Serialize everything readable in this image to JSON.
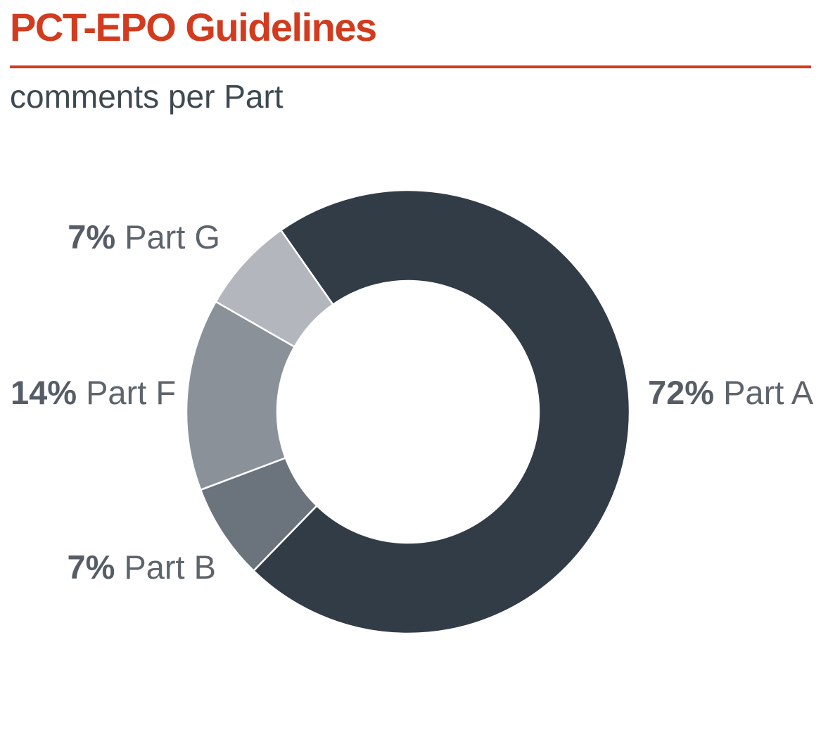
{
  "page": {
    "title": "PCT-EPO Guidelines",
    "subtitle": "comments per Part"
  },
  "theme": {
    "accent_red": "#d23b1e",
    "subtitle_color": "#3e4952",
    "label_pct_color": "#565d66",
    "label_name_color": "#5d646c",
    "background": "#ffffff"
  },
  "chart_data": {
    "type": "pie",
    "donut": true,
    "title": "PCT-EPO Guidelines",
    "subtitle": "comments per Part",
    "unit": "%",
    "start_angle_deg": -35,
    "direction": "clockwise",
    "hole_ratio": 0.59,
    "separator_color": "#ffffff",
    "legend_position": "outside-labels",
    "slices": [
      {
        "label": "Part A",
        "value": 72,
        "pct_label": "72%",
        "color": "#323c47"
      },
      {
        "label": "Part B",
        "value": 7,
        "pct_label": "7%",
        "color": "#6b737d"
      },
      {
        "label": "Part F",
        "value": 14,
        "pct_label": "14%",
        "color": "#8b9199"
      },
      {
        "label": "Part G",
        "value": 7,
        "pct_label": "7%",
        "color": "#b3b6bc"
      }
    ]
  }
}
